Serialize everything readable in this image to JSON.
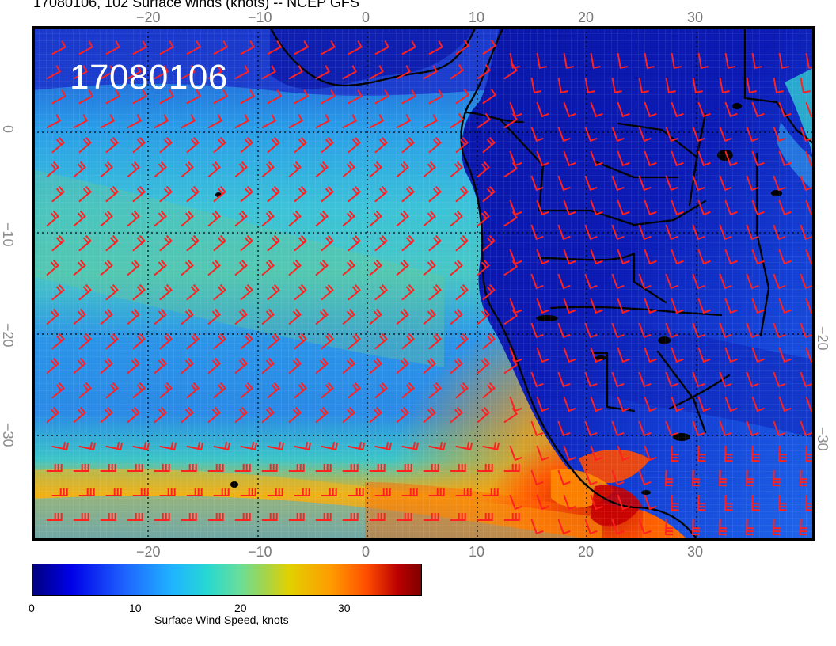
{
  "map": {
    "title": "17080106, 102 Surface winds (knots) -- NCEP GFS",
    "time_stamp": "17080106",
    "x_ticks": [
      "−20",
      "−10",
      "0",
      "10",
      "20",
      "30"
    ],
    "y_ticks": [
      "0",
      "−10",
      "−20",
      "−30"
    ],
    "colorbar": {
      "title": "Surface Wind Speed, knots",
      "labels": [
        "0",
        "10",
        "20",
        "30"
      ]
    }
  }
}
